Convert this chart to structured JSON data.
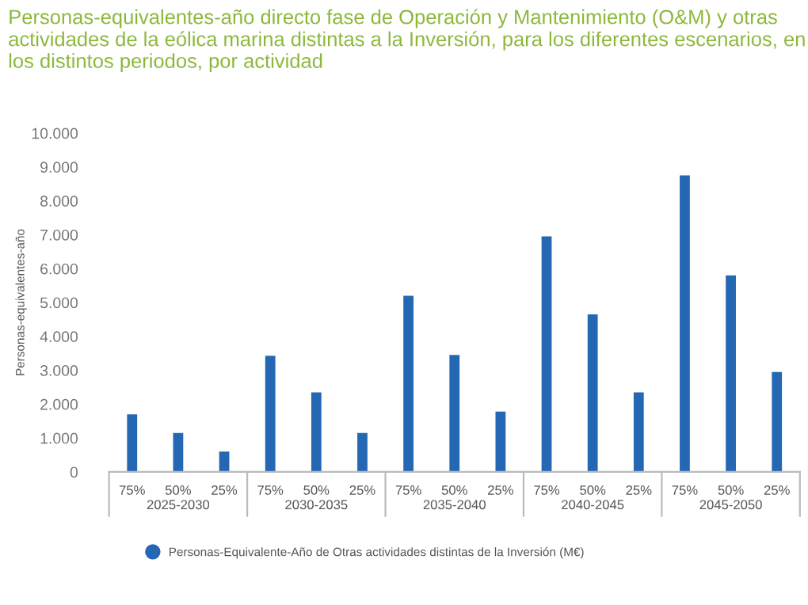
{
  "chart_data": {
    "type": "bar",
    "title": "Personas-equivalentes-año directo fase de Operación y Mantenimiento (O&M) y otras actividades de la eólica marina distintas a la Inversión, para los diferentes escenarios, en los distintos periodos, por actividad",
    "ylabel": "Personas-equivalentes-año",
    "categories": [
      "75%",
      "50%",
      "25%",
      "75%",
      "50%",
      "25%",
      "75%",
      "50%",
      "25%",
      "75%",
      "50%",
      "25%",
      "75%",
      "50%",
      "25%"
    ],
    "annotations": [
      "2025-2030",
      "2030-2035",
      "2035-2040",
      "2040-2045",
      "2045-2050"
    ],
    "series": [
      {
        "name": "Personas-Equivalente-Año de Otras actividades distintas de la Inversión (M€)",
        "color": "#2468b4",
        "values": [
          1700,
          1150,
          600,
          3430,
          2350,
          1150,
          5200,
          3450,
          1780,
          6950,
          4650,
          2350,
          8750,
          5800,
          2950
        ]
      }
    ],
    "ylim": [
      0,
      10000
    ],
    "yticks": [
      0,
      {
        "value": 1000,
        "label": "1.000"
      },
      {
        "value": 2000,
        "label": "2.000"
      },
      {
        "value": 3000,
        "label": "3.000"
      },
      {
        "value": 4000,
        "label": "4.000"
      },
      {
        "value": 5000,
        "label": "5.000"
      },
      {
        "value": 6000,
        "label": "6.000"
      },
      {
        "value": 7000,
        "label": "7.000"
      },
      {
        "value": 8000,
        "label": "8.000"
      },
      {
        "value": 9000,
        "label": "9.000"
      },
      {
        "value": 10000,
        "label": "10.000"
      }
    ],
    "grid": false,
    "legend": "bottom left"
  }
}
